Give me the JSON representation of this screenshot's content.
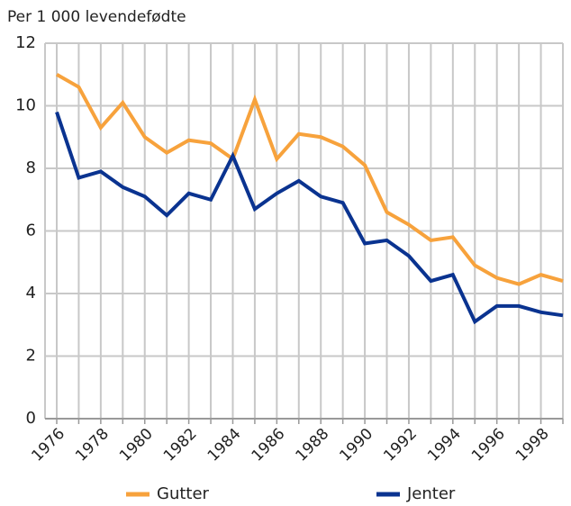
{
  "chart_data": {
    "type": "line",
    "y_label": "Per 1 000 levendefødte",
    "categories": [
      "1976",
      null,
      "1978",
      null,
      "1980",
      null,
      "1982",
      null,
      "1984",
      null,
      "1986",
      null,
      "1988",
      null,
      "1990",
      null,
      "1992",
      null,
      "1994",
      null,
      "1996",
      null,
      "1998",
      null
    ],
    "series": [
      {
        "name": "Gutter",
        "color": "#f7a23c",
        "values": [
          11.0,
          10.6,
          9.3,
          10.1,
          9.0,
          8.5,
          8.9,
          8.8,
          8.3,
          10.2,
          8.3,
          9.1,
          9.0,
          8.7,
          8.1,
          6.6,
          6.2,
          5.7,
          5.8,
          4.9,
          4.5,
          4.3,
          4.6,
          4.4
        ]
      },
      {
        "name": "Jenter",
        "color": "#0a3390",
        "values": [
          9.8,
          7.7,
          7.9,
          7.4,
          7.1,
          6.5,
          7.2,
          7.0,
          8.4,
          6.7,
          7.2,
          7.6,
          7.1,
          6.9,
          5.6,
          5.7,
          5.2,
          4.4,
          4.6,
          3.1,
          3.6,
          3.6,
          3.4,
          3.3
        ]
      }
    ],
    "ylim": [
      0,
      12
    ],
    "yticks": [
      0,
      2,
      4,
      6,
      8,
      10,
      12
    ],
    "grid": true,
    "legend": "bottom"
  }
}
